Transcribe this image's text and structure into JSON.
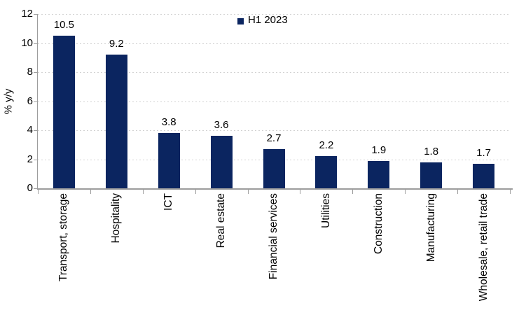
{
  "chart_data": {
    "type": "bar",
    "title": "",
    "categories": [
      "Transport, storage",
      "Hospitality",
      "ICT",
      "Real estate",
      "Financial services",
      "Utilities",
      "Construction",
      "Manufacturing",
      "Wholesale, retail trade"
    ],
    "series": [
      {
        "name": "H1 2023",
        "values": [
          10.5,
          9.2,
          3.8,
          3.6,
          2.7,
          2.2,
          1.9,
          1.8,
          1.7
        ],
        "data_labels": [
          "10.5",
          "9.2",
          "3.8",
          "3.6",
          "2.7",
          "2.2",
          "1.9",
          "1.8",
          "1.7"
        ],
        "color": "#0b2560"
      }
    ],
    "xlabel": "",
    "ylabel": "% y/y",
    "ylim": [
      0,
      12
    ],
    "y_ticks": [
      0,
      2,
      4,
      6,
      8,
      10,
      12
    ],
    "grid": "horizontal-dotted",
    "gridline_color": "#d2d2d2",
    "axis_color": "#9d9d9d",
    "legend_position": "top-center",
    "background_color": "#ffffff"
  }
}
